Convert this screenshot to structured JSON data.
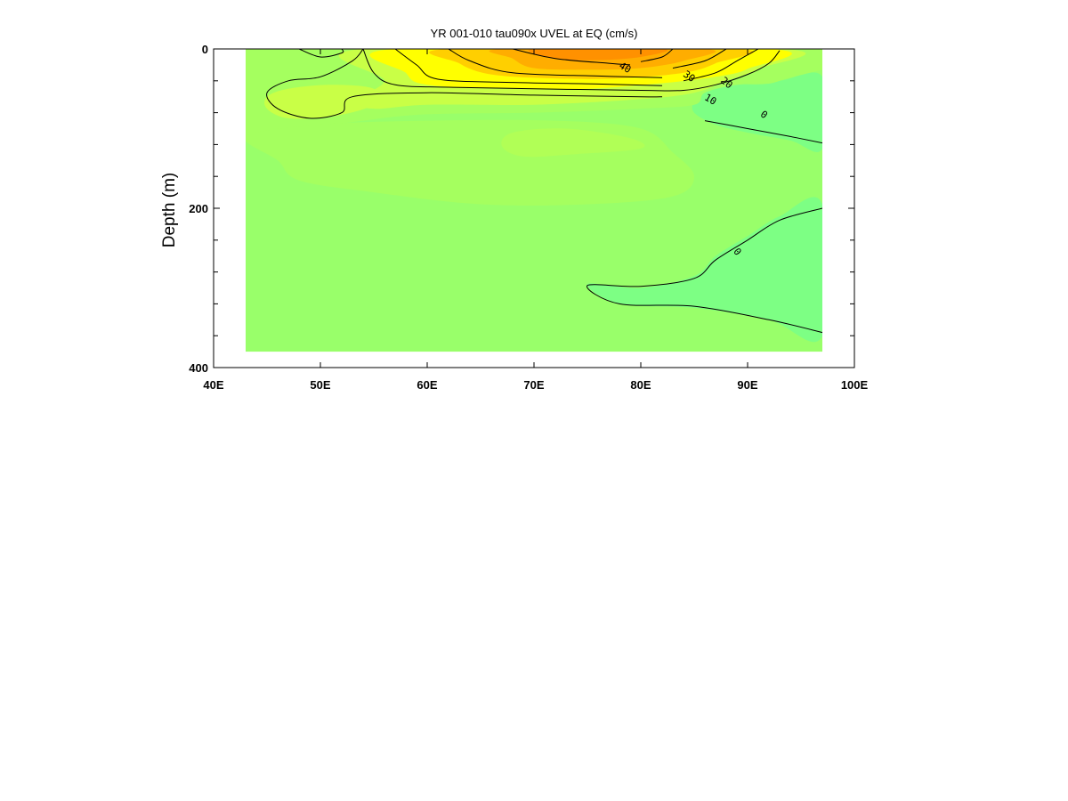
{
  "chart_data": {
    "type": "contour",
    "title": "YR 001-010 tau090x UVEL at EQ (cm/s)",
    "xlabel": "",
    "ylabel": "Depth (m)",
    "xlim": [
      40,
      100
    ],
    "ylim": [
      400,
      0
    ],
    "data_extent": {
      "lon": [
        43,
        97
      ],
      "depth": [
        0,
        380
      ]
    },
    "x_ticks": [
      {
        "value": 40,
        "label": "40E"
      },
      {
        "value": 50,
        "label": "50E"
      },
      {
        "value": 60,
        "label": "60E"
      },
      {
        "value": 70,
        "label": "70E"
      },
      {
        "value": 80,
        "label": "80E"
      },
      {
        "value": 90,
        "label": "90E"
      },
      {
        "value": 100,
        "label": "100E"
      }
    ],
    "y_ticks": [
      {
        "value": 0,
        "label": "0"
      },
      {
        "value": 200,
        "label": "200"
      },
      {
        "value": 400,
        "label": "400"
      }
    ],
    "y_minor_ticks": [
      40,
      80,
      120,
      160,
      240,
      280,
      320,
      360
    ],
    "background_color": "#99ff6a",
    "fill_regions": [
      {
        "level": -5,
        "color": "#7dff84",
        "points": [
          [
            86,
            50
          ],
          [
            89,
            45
          ],
          [
            93,
            40
          ],
          [
            97,
            35
          ],
          [
            97,
            125
          ],
          [
            94,
            115
          ],
          [
            90,
            105
          ],
          [
            87,
            95
          ],
          [
            85,
            80
          ],
          [
            85,
            65
          ]
        ]
      },
      {
        "level": -5,
        "color": "#7dff84",
        "points": [
          [
            97,
            195
          ],
          [
            93,
            210
          ],
          [
            90,
            235
          ],
          [
            87,
            260
          ],
          [
            85,
            285
          ],
          [
            80,
            300
          ],
          [
            75,
            295
          ],
          [
            78,
            320
          ],
          [
            85,
            325
          ],
          [
            92,
            340
          ],
          [
            97,
            360
          ]
        ]
      },
      {
        "level": 5,
        "color": "#a5ff5f",
        "points": [
          [
            43,
            0
          ],
          [
            97,
            0
          ],
          [
            93,
            40
          ],
          [
            89,
            45
          ],
          [
            86,
            55
          ],
          [
            85,
            70
          ],
          [
            80,
            75
          ],
          [
            70,
            80
          ],
          [
            60,
            82
          ],
          [
            54,
            90
          ],
          [
            49,
            100
          ],
          [
            46,
            110
          ],
          [
            43,
            110
          ]
        ]
      },
      {
        "level": 5,
        "color": "#a5ff5f",
        "points": [
          [
            43,
            110
          ],
          [
            46,
            140
          ],
          [
            48,
            165
          ],
          [
            55,
            180
          ],
          [
            65,
            195
          ],
          [
            75,
            195
          ],
          [
            83,
            185
          ],
          [
            85,
            160
          ],
          [
            83,
            130
          ],
          [
            80,
            100
          ],
          [
            72,
            90
          ],
          [
            60,
            90
          ],
          [
            50,
            95
          ]
        ]
      },
      {
        "level": 8,
        "color": "#b1ff56",
        "points": [
          [
            68,
            105
          ],
          [
            73,
            100
          ],
          [
            79,
            112
          ],
          [
            80,
            125
          ],
          [
            74,
            132
          ],
          [
            69,
            135
          ],
          [
            67,
            122
          ]
        ]
      },
      {
        "level": 10,
        "color": "#c9ff46",
        "points": [
          [
            45,
            60
          ],
          [
            47,
            50
          ],
          [
            51,
            45
          ],
          [
            55,
            50
          ],
          [
            55,
            70
          ],
          [
            51,
            85
          ],
          [
            47,
            87
          ],
          [
            45,
            75
          ]
        ]
      },
      {
        "level": 10,
        "color": "#c9ff46",
        "points": [
          [
            54,
            0
          ],
          [
            93,
            0
          ],
          [
            91,
            25
          ],
          [
            88,
            40
          ],
          [
            85,
            55
          ],
          [
            80,
            63
          ],
          [
            70,
            70
          ],
          [
            60,
            70
          ],
          [
            55,
            75
          ],
          [
            53,
            65
          ],
          [
            56,
            40
          ]
        ]
      },
      {
        "level": 20,
        "color": "#ffff00",
        "points": [
          [
            57,
            0
          ],
          [
            92,
            0
          ],
          [
            90,
            25
          ],
          [
            87,
            35
          ],
          [
            82,
            43
          ],
          [
            75,
            50
          ],
          [
            68,
            50
          ],
          [
            60,
            45
          ],
          [
            58,
            30
          ]
        ]
      },
      {
        "level": 30,
        "color": "#ffcf00",
        "points": [
          [
            62,
            0
          ],
          [
            89,
            0
          ],
          [
            87,
            18
          ],
          [
            84,
            30
          ],
          [
            78,
            37
          ],
          [
            72,
            37
          ],
          [
            66,
            32
          ],
          [
            63,
            18
          ]
        ]
      },
      {
        "level": 40,
        "color": "#ffad00",
        "points": [
          [
            67,
            0
          ],
          [
            86,
            0
          ],
          [
            84,
            15
          ],
          [
            80,
            24
          ],
          [
            75,
            26
          ],
          [
            70,
            24
          ],
          [
            68,
            12
          ]
        ]
      },
      {
        "level": 50,
        "color": "#ff9100",
        "points": [
          [
            70,
            0
          ],
          [
            82,
            0
          ],
          [
            80,
            10
          ],
          [
            76,
            14
          ],
          [
            72,
            12
          ]
        ]
      }
    ],
    "contour_lines": [
      {
        "level": 0,
        "points": [
          [
            48,
            0
          ],
          [
            50,
            10
          ],
          [
            52,
            5
          ],
          [
            52,
            0
          ]
        ]
      },
      {
        "level": 0,
        "points": [
          [
            86,
            90
          ],
          [
            90,
            100
          ],
          [
            94,
            110
          ],
          [
            97,
            118
          ]
        ]
      },
      {
        "level": 0,
        "points": [
          [
            97,
            200
          ],
          [
            93,
            215
          ],
          [
            90,
            240
          ],
          [
            87,
            265
          ],
          [
            85,
            288
          ],
          [
            80,
            298
          ],
          [
            75,
            297
          ],
          [
            78,
            320
          ],
          [
            85,
            323
          ],
          [
            92,
            340
          ],
          [
            97,
            356
          ]
        ]
      },
      {
        "level": 10,
        "points": [
          [
            54,
            0
          ],
          [
            53,
            15
          ],
          [
            50,
            35
          ],
          [
            47,
            40
          ],
          [
            45,
            55
          ],
          [
            46,
            75
          ],
          [
            49,
            87
          ],
          [
            52,
            80
          ],
          [
            53,
            60
          ],
          [
            60,
            55
          ],
          [
            70,
            58
          ],
          [
            80,
            60
          ],
          [
            82,
            60
          ]
        ]
      },
      {
        "level": 10,
        "points": [
          [
            54,
            0
          ],
          [
            55,
            30
          ],
          [
            57,
            45
          ],
          [
            62,
            48
          ],
          [
            70,
            50
          ],
          [
            80,
            52
          ],
          [
            84,
            52
          ],
          [
            87,
            45
          ],
          [
            90,
            32
          ],
          [
            92,
            18
          ],
          [
            93,
            2
          ]
        ]
      },
      {
        "level": 20,
        "points": [
          [
            57,
            0
          ],
          [
            59,
            20
          ],
          [
            61,
            38
          ],
          [
            68,
            42
          ],
          [
            76,
            44
          ],
          [
            82,
            46
          ]
        ]
      },
      {
        "level": 20,
        "points": [
          [
            91,
            0
          ],
          [
            89,
            15
          ],
          [
            87,
            30
          ],
          [
            84,
            40
          ]
        ]
      },
      {
        "level": 30,
        "points": [
          [
            62,
            0
          ],
          [
            64,
            15
          ],
          [
            68,
            30
          ],
          [
            76,
            34
          ],
          [
            82,
            36
          ]
        ]
      },
      {
        "level": 30,
        "points": [
          [
            88,
            0
          ],
          [
            86,
            15
          ],
          [
            83,
            24
          ]
        ]
      },
      {
        "level": 40,
        "points": [
          [
            68,
            0
          ],
          [
            72,
            12
          ],
          [
            77,
            18
          ],
          [
            79,
            20
          ]
        ]
      },
      {
        "level": 40,
        "points": [
          [
            83,
            0
          ],
          [
            82,
            10
          ],
          [
            80,
            16
          ]
        ]
      }
    ],
    "contour_labels": [
      {
        "text": "40",
        "lon": 78.5,
        "depth": 24,
        "angle": 30
      },
      {
        "text": "30",
        "lon": 84.5,
        "depth": 35,
        "angle": 35
      },
      {
        "text": "20",
        "lon": 88,
        "depth": 43,
        "angle": 40
      },
      {
        "text": "10",
        "lon": 86.5,
        "depth": 64,
        "angle": 30
      },
      {
        "text": "0",
        "lon": 91.5,
        "depth": 83,
        "angle": 35
      },
      {
        "text": "0",
        "lon": 89,
        "depth": 255,
        "angle": 50
      }
    ]
  }
}
